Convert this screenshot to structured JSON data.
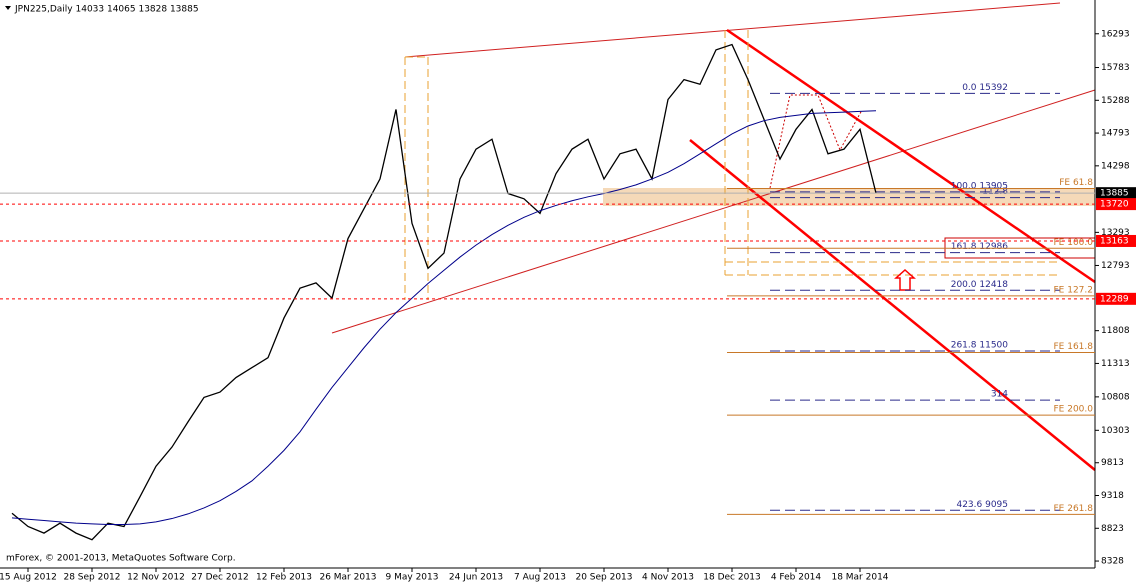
{
  "chart_data": {
    "type": "line",
    "title": "JPN225,Daily  14033 14065 13828 13885",
    "footer": "mForex, © 2001-2013, MetaQuotes Software Corp.",
    "categories": [
      null,
      "15 Aug 2012",
      null,
      null,
      null,
      "28 Sep 2012",
      null,
      null,
      null,
      "12 Nov 2012",
      null,
      null,
      null,
      "27 Dec 2012",
      null,
      null,
      null,
      "12 Feb 2013",
      null,
      null,
      null,
      "26 Mar 2013",
      null,
      null,
      null,
      "9 May 2013",
      null,
      null,
      null,
      "24 Jun 2013",
      null,
      null,
      null,
      "7 Aug 2013",
      null,
      null,
      null,
      "20 Sep 2013",
      null,
      null,
      null,
      "4 Nov 2013",
      null,
      null,
      null,
      "18 Dec 2013",
      null,
      null,
      null,
      "4 Feb 2014",
      null,
      null,
      null,
      "18 Mar 2014",
      null
    ],
    "series": [
      {
        "color": "#000000",
        "values": [
          9050,
          8850,
          8750,
          8900,
          8750,
          8650,
          8900,
          8850,
          9300,
          9760,
          10050,
          10430,
          10800,
          10880,
          11100,
          11250,
          11400,
          12000,
          12450,
          12530,
          12300,
          13200,
          13650,
          14100,
          15150,
          13430,
          12750,
          12980,
          14100,
          14550,
          14700,
          13880,
          13800,
          13580,
          14180,
          14550,
          14700,
          14100,
          14480,
          14550,
          14100,
          15300,
          15600,
          15530,
          16050,
          16130,
          15600,
          15000,
          14400,
          14850,
          15150,
          14480,
          14550,
          14850,
          13885
        ]
      },
      {
        "color": "#00008b",
        "values": [
          8980,
          8960,
          8940,
          8920,
          8900,
          8890,
          8880,
          8880,
          8890,
          8920,
          8970,
          9040,
          9130,
          9240,
          9380,
          9540,
          9760,
          10000,
          10280,
          10620,
          10950,
          11250,
          11550,
          11830,
          12080,
          12300,
          12520,
          12720,
          12920,
          13100,
          13260,
          13400,
          13520,
          13620,
          13700,
          13770,
          13830,
          13880,
          13940,
          14010,
          14100,
          14200,
          14330,
          14480,
          14630,
          14780,
          14900,
          14980,
          15030,
          15060,
          15090,
          15100,
          15110,
          15120,
          15130
        ]
      }
    ],
    "ylim": [
      8223,
      16803
    ],
    "yticks": [
      16293,
      15783,
      15288,
      14793,
      14298,
      13293,
      12793,
      11808,
      11313,
      10808,
      10303,
      9813,
      9318,
      8823,
      8328
    ],
    "price_markers": [
      {
        "value": 13885,
        "color": "#000000"
      },
      {
        "value": 13720,
        "color": "#ff0000"
      },
      {
        "value": 13163,
        "color": "#ff0000"
      },
      {
        "value": 12289,
        "color": "#ff0000"
      }
    ],
    "fib_levels": [
      {
        "value": 15392,
        "label": "0.0   15392"
      },
      {
        "value": 13905,
        "label": "100.0   13905"
      },
      {
        "value": 13818,
        "label": "112.8"
      },
      {
        "value": 12986,
        "label": "161.8   12986"
      },
      {
        "value": 12418,
        "label": "200.0   12418"
      },
      {
        "value": 11500,
        "label": "261.8   11500"
      },
      {
        "value": 10758,
        "label": "314"
      },
      {
        "value": 9095,
        "label": "423.6   9095"
      }
    ],
    "fe_levels": [
      {
        "value": 13955,
        "label": "FE 61.8"
      },
      {
        "value": 13053,
        "label": "FE 100.0"
      },
      {
        "value": 12333,
        "label": "FE 127.2"
      },
      {
        "value": 11478,
        "label": "FE 161.8"
      },
      {
        "value": 10533,
        "label": "FE 200.0"
      },
      {
        "value": 9033,
        "label": "FE 261.8"
      }
    ]
  }
}
